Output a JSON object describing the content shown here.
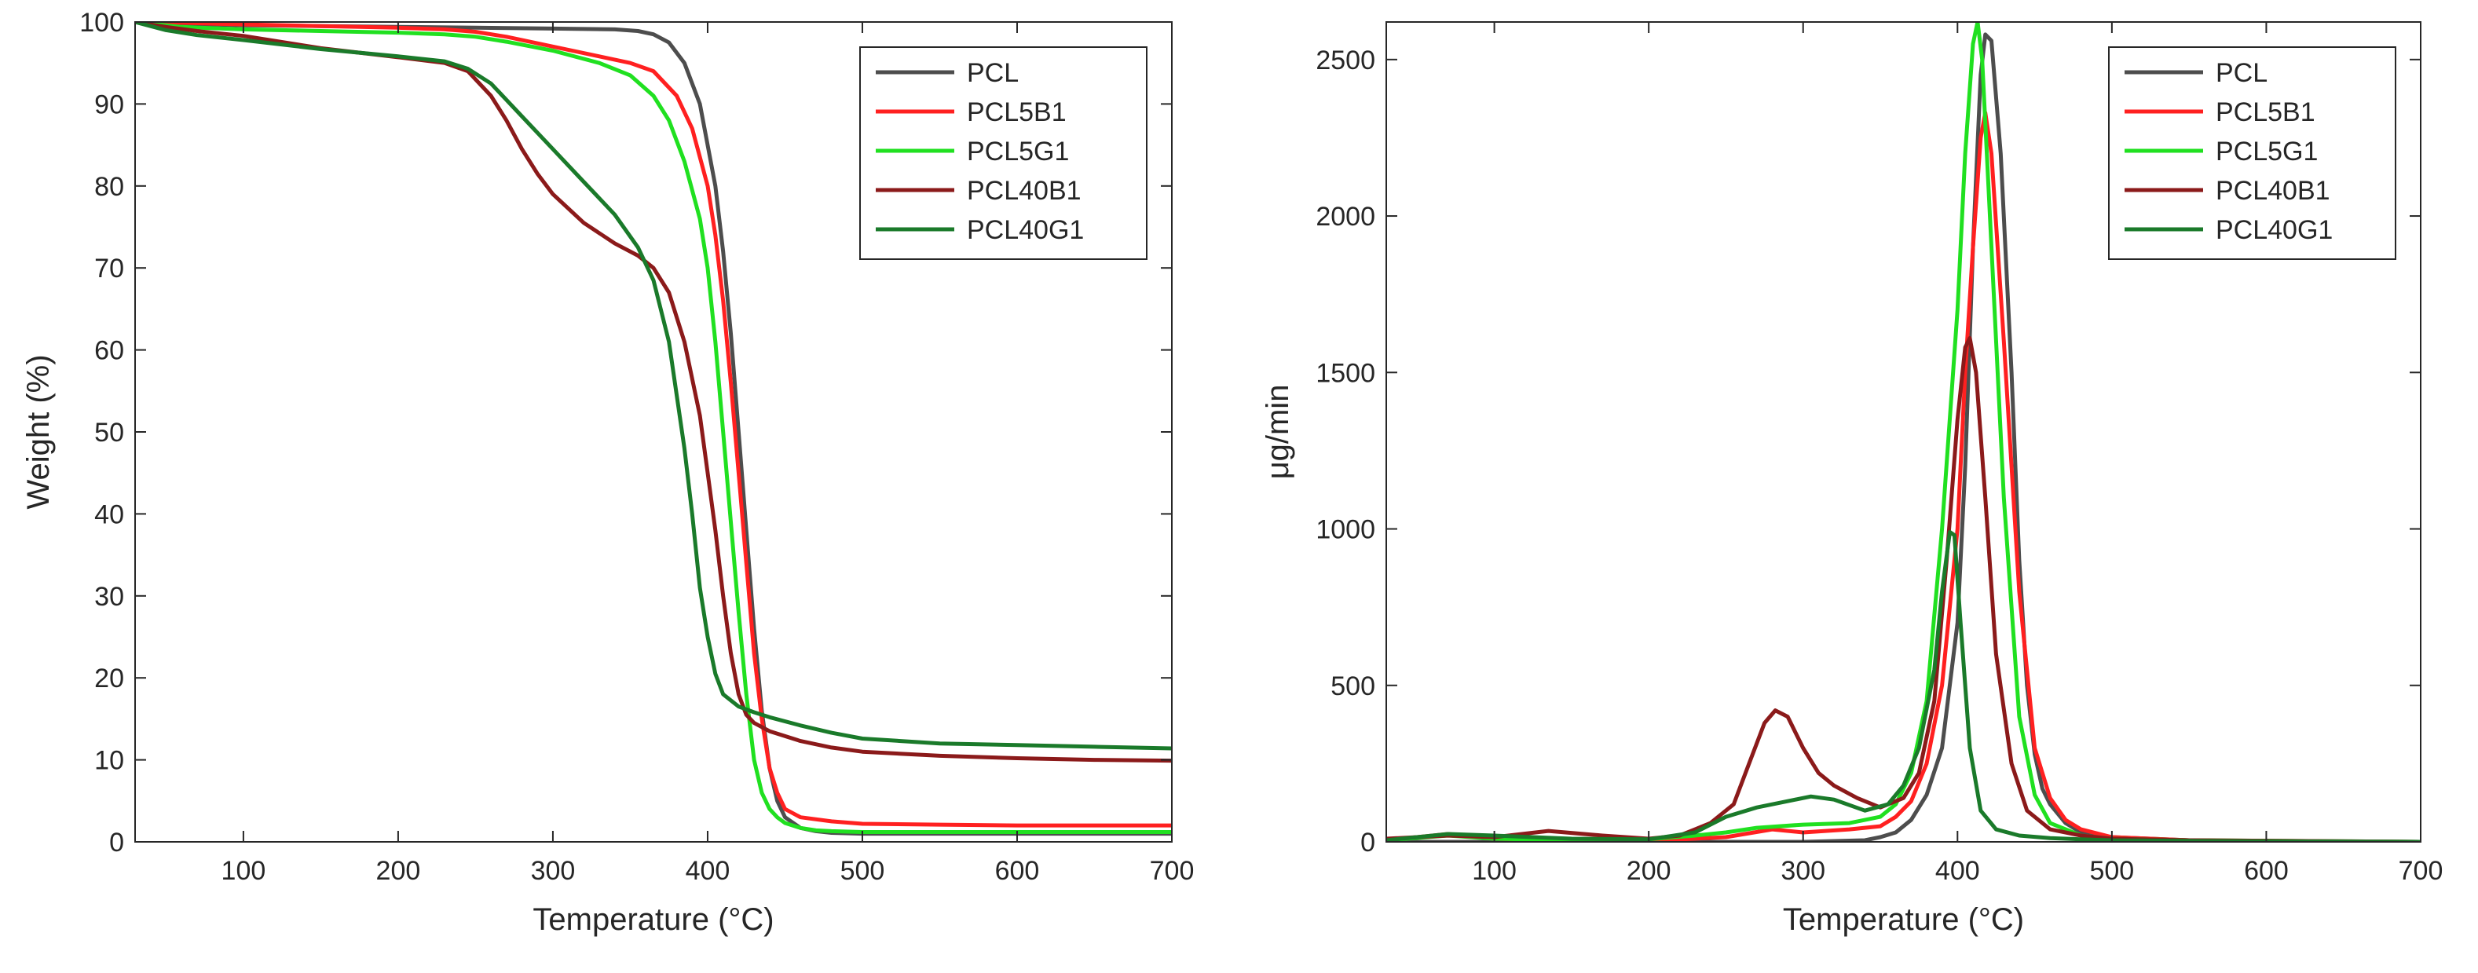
{
  "chart_data": [
    {
      "type": "line",
      "title": "",
      "xlabel": "Temperature (°C)",
      "ylabel": "Weight (%)",
      "xlim": [
        30,
        700
      ],
      "ylim": [
        0,
        100
      ],
      "xticks": [
        100,
        200,
        300,
        400,
        500,
        600,
        700
      ],
      "xtick_labels": [
        "100",
        "200",
        "300",
        "400",
        "500",
        "600",
        "700"
      ],
      "yticks": [
        0,
        10,
        20,
        30,
        40,
        50,
        60,
        70,
        80,
        90,
        100
      ],
      "ytick_labels": [
        "0",
        "10",
        "20",
        "30",
        "40",
        "50",
        "60",
        "70",
        "80",
        "90",
        "100"
      ],
      "grid": false,
      "legend_position": "top-right",
      "series": [
        {
          "name": "PCL",
          "color": "#4d4d4d",
          "x": [
            30,
            60,
            100,
            150,
            200,
            250,
            300,
            340,
            355,
            365,
            375,
            385,
            395,
            405,
            410,
            415,
            420,
            425,
            430,
            435,
            440,
            445,
            450,
            460,
            470,
            480,
            500,
            550,
            600,
            650,
            700
          ],
          "y": [
            100,
            99.8,
            99.6,
            99.5,
            99.4,
            99.3,
            99.2,
            99.1,
            98.9,
            98.5,
            97.5,
            95,
            90,
            80,
            72,
            62,
            50,
            38,
            26,
            16,
            9,
            5,
            3,
            1.7,
            1.3,
            1.1,
            1.0,
            1.0,
            1.0,
            1.0,
            1.0
          ]
        },
        {
          "name": "PCL5B1",
          "color": "#ff2020",
          "x": [
            30,
            60,
            100,
            150,
            200,
            230,
            250,
            270,
            300,
            330,
            350,
            365,
            380,
            390,
            400,
            405,
            410,
            415,
            420,
            425,
            430,
            435,
            440,
            445,
            450,
            460,
            480,
            500,
            550,
            600,
            650,
            700
          ],
          "y": [
            100,
            99.9,
            99.7,
            99.5,
            99.3,
            99.1,
            98.8,
            98.2,
            97,
            95.8,
            95,
            94,
            91,
            87,
            80,
            74,
            66,
            56,
            45,
            34,
            23,
            15,
            9,
            6,
            4,
            3,
            2.5,
            2.2,
            2.1,
            2.0,
            2.0,
            2.0
          ]
        },
        {
          "name": "PCL5G1",
          "color": "#20e020",
          "x": [
            30,
            60,
            100,
            150,
            200,
            230,
            250,
            270,
            300,
            330,
            350,
            365,
            375,
            385,
            395,
            400,
            405,
            410,
            415,
            420,
            425,
            430,
            435,
            440,
            445,
            450,
            460,
            470,
            480,
            500,
            550,
            600,
            650,
            700
          ],
          "y": [
            100,
            99.4,
            99.1,
            98.9,
            98.7,
            98.5,
            98.2,
            97.6,
            96.5,
            95,
            93.5,
            91,
            88,
            83,
            76,
            70,
            61,
            50,
            39,
            28,
            18,
            10,
            6,
            4,
            3,
            2.3,
            1.7,
            1.4,
            1.3,
            1.2,
            1.2,
            1.2,
            1.2,
            1.2
          ]
        },
        {
          "name": "PCL40B1",
          "color": "#8b1a1a",
          "x": [
            30,
            50,
            70,
            100,
            150,
            200,
            230,
            245,
            260,
            270,
            280,
            290,
            300,
            320,
            340,
            355,
            365,
            375,
            385,
            395,
            400,
            405,
            410,
            415,
            420,
            425,
            430,
            440,
            460,
            480,
            500,
            550,
            600,
            650,
            700
          ],
          "y": [
            100,
            99.4,
            98.9,
            98.3,
            96.8,
            95.7,
            95,
            94,
            91,
            88,
            84.5,
            81.5,
            79,
            75.5,
            73,
            71.5,
            70,
            67,
            61,
            52,
            45,
            38,
            30,
            23,
            18,
            15.5,
            14.5,
            13.5,
            12.3,
            11.5,
            11,
            10.5,
            10.2,
            10.0,
            9.9
          ]
        },
        {
          "name": "PCL40G1",
          "color": "#1a7a2a",
          "x": [
            30,
            50,
            70,
            100,
            150,
            200,
            230,
            245,
            260,
            280,
            300,
            320,
            340,
            355,
            365,
            375,
            385,
            390,
            395,
            400,
            405,
            410,
            420,
            430,
            440,
            460,
            480,
            500,
            550,
            600,
            650,
            700
          ],
          "y": [
            100,
            99,
            98.4,
            97.8,
            96.7,
            95.8,
            95.2,
            94.3,
            92.5,
            88.5,
            84.5,
            80.5,
            76.5,
            72.5,
            68.5,
            61,
            48,
            40,
            31,
            25,
            20.5,
            18,
            16.5,
            15.8,
            15.2,
            14.2,
            13.3,
            12.6,
            12,
            11.8,
            11.6,
            11.4
          ]
        }
      ],
      "legend": [
        "PCL",
        "PCL5B1",
        "PCL5G1",
        "PCL40B1",
        "PCL40G1"
      ]
    },
    {
      "type": "line",
      "title": "",
      "xlabel": "Temperature (°C)",
      "ylabel": "μg/min",
      "xlim": [
        30,
        700
      ],
      "ylim": [
        0,
        2620
      ],
      "xticks": [
        100,
        200,
        300,
        400,
        500,
        600,
        700
      ],
      "xtick_labels": [
        "100",
        "200",
        "300",
        "400",
        "500",
        "600",
        "700"
      ],
      "yticks": [
        0,
        500,
        1000,
        1500,
        2000,
        2500
      ],
      "ytick_labels": [
        "0",
        "500",
        "1000",
        "1500",
        "2000",
        "2500"
      ],
      "grid": false,
      "legend_position": "top-right",
      "series": [
        {
          "name": "PCL",
          "color": "#4d4d4d",
          "x": [
            30,
            100,
            200,
            300,
            340,
            350,
            360,
            370,
            380,
            390,
            400,
            405,
            410,
            415,
            418,
            422,
            428,
            435,
            440,
            445,
            450,
            455,
            460,
            470,
            480,
            500,
            550,
            600,
            700
          ],
          "y": [
            0,
            0,
            0,
            0,
            5,
            15,
            30,
            70,
            150,
            300,
            700,
            1200,
            1900,
            2450,
            2580,
            2560,
            2200,
            1500,
            900,
            500,
            280,
            170,
            120,
            60,
            30,
            15,
            5,
            2,
            0
          ]
        },
        {
          "name": "PCL5B1",
          "color": "#ff2020",
          "x": [
            30,
            70,
            100,
            150,
            200,
            250,
            280,
            300,
            330,
            350,
            360,
            370,
            380,
            390,
            400,
            405,
            410,
            415,
            418,
            422,
            430,
            440,
            450,
            460,
            470,
            480,
            500,
            550,
            600,
            700
          ],
          "y": [
            5,
            25,
            10,
            5,
            3,
            15,
            40,
            30,
            40,
            50,
            80,
            130,
            250,
            500,
            1000,
            1500,
            1900,
            2250,
            2330,
            2200,
            1600,
            800,
            300,
            140,
            70,
            40,
            15,
            5,
            2,
            0
          ]
        },
        {
          "name": "PCL5G1",
          "color": "#20e020",
          "x": [
            30,
            70,
            100,
            150,
            200,
            230,
            250,
            270,
            300,
            330,
            350,
            360,
            370,
            380,
            390,
            400,
            405,
            410,
            413,
            416,
            420,
            430,
            440,
            450,
            460,
            480,
            500,
            550,
            700
          ],
          "y": [
            5,
            20,
            10,
            5,
            8,
            20,
            30,
            45,
            55,
            60,
            80,
            120,
            220,
            450,
            1000,
            1700,
            2200,
            2550,
            2620,
            2500,
            2100,
            1100,
            400,
            150,
            60,
            20,
            10,
            5,
            0
          ]
        },
        {
          "name": "PCL40B1",
          "color": "#8b1a1a",
          "x": [
            30,
            70,
            100,
            135,
            170,
            200,
            220,
            240,
            255,
            265,
            275,
            282,
            290,
            300,
            310,
            320,
            335,
            350,
            365,
            375,
            385,
            393,
            400,
            405,
            408,
            412,
            418,
            425,
            435,
            445,
            460,
            480,
            500,
            550,
            700
          ],
          "y": [
            10,
            20,
            15,
            35,
            20,
            10,
            20,
            60,
            120,
            250,
            380,
            420,
            400,
            300,
            220,
            180,
            140,
            110,
            140,
            220,
            450,
            900,
            1350,
            1580,
            1610,
            1500,
            1100,
            600,
            250,
            100,
            40,
            20,
            10,
            5,
            0
          ]
        },
        {
          "name": "PCL40G1",
          "color": "#1a7a2a",
          "x": [
            30,
            70,
            100,
            150,
            200,
            230,
            250,
            270,
            290,
            305,
            320,
            340,
            355,
            365,
            375,
            385,
            390,
            395,
            398,
            402,
            408,
            415,
            425,
            440,
            460,
            480,
            500,
            550,
            700
          ],
          "y": [
            5,
            25,
            20,
            10,
            8,
            30,
            80,
            110,
            130,
            145,
            135,
            100,
            120,
            180,
            300,
            550,
            800,
            990,
            980,
            700,
            300,
            100,
            40,
            20,
            12,
            8,
            5,
            3,
            0
          ]
        }
      ],
      "legend": [
        "PCL",
        "PCL5B1",
        "PCL5G1",
        "PCL40B1",
        "PCL40G1"
      ]
    }
  ]
}
